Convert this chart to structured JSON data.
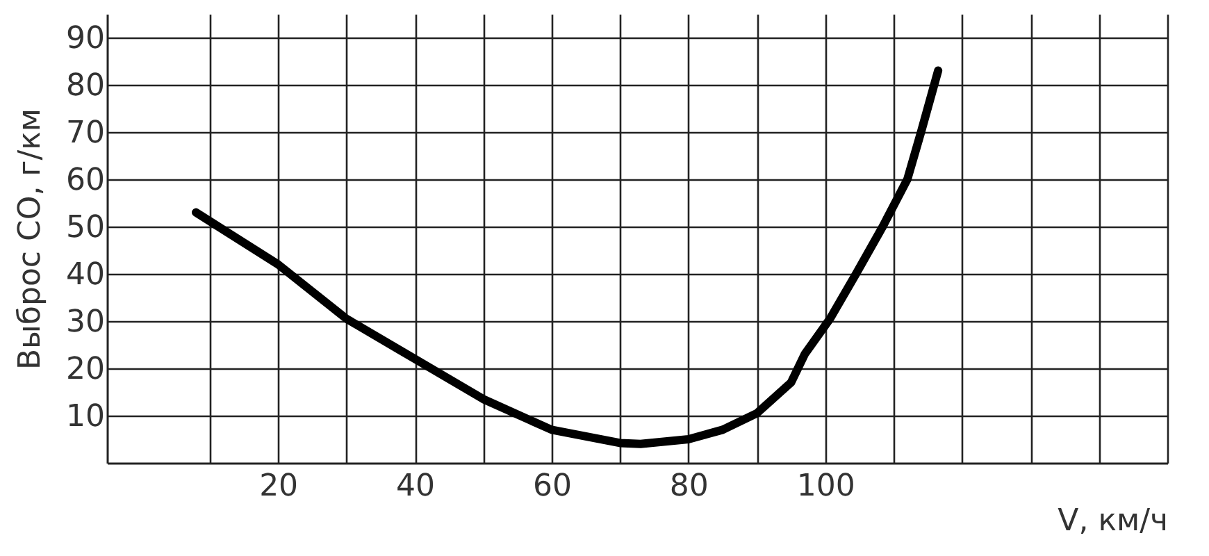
{
  "chart_data": {
    "type": "line",
    "xlabel": "V, км/ч",
    "ylabel": "Выброс CO, г/км",
    "x": [
      8,
      20,
      30,
      40,
      50,
      60,
      70,
      73,
      80,
      85,
      90,
      95,
      97,
      100.7,
      104.5,
      108.4,
      112,
      114,
      116.5
    ],
    "series": [
      {
        "color": "#000000",
        "values": [
          53,
          42,
          30.5,
          22,
          13.5,
          7,
          4.2,
          4,
          5,
          7,
          10.5,
          17,
          23,
          30.5,
          40,
          50,
          60,
          70,
          83
        ]
      }
    ],
    "xlim": [
      -5,
      150
    ],
    "xticks": [
      {
        "value": 10,
        "label": null
      },
      20,
      {
        "value": 30,
        "label": null
      },
      40,
      {
        "value": 50,
        "label": null
      },
      60,
      {
        "value": 70,
        "label": null
      },
      80,
      {
        "value": 90,
        "label": null
      },
      100,
      {
        "value": 110,
        "label": null
      },
      {
        "value": 120,
        "label": null
      },
      {
        "value": 130,
        "label": null
      },
      {
        "value": 140,
        "label": null
      },
      {
        "value": 150,
        "label": null
      }
    ],
    "ylim": [
      0,
      95
    ],
    "yticks": [
      10,
      20,
      30,
      40,
      50,
      60,
      70,
      80,
      90
    ],
    "grid": true,
    "marker": "none",
    "line_style": "solid"
  }
}
